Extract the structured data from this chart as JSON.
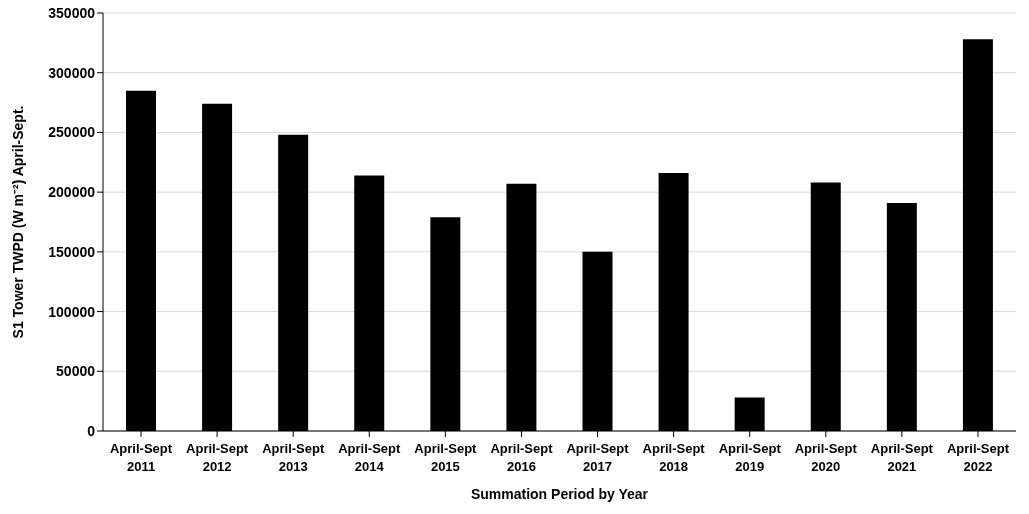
{
  "chart_data": {
    "type": "bar",
    "xlabel": "Summation Period by Year",
    "ylabel": "S1 Tower TWPD (W m⁻²) April-Sept.",
    "categories": [
      "April-Sept\n2011",
      "April-Sept\n2012",
      "April-Sept\n2013",
      "April-Sept\n2014",
      "April-Sept\n2015",
      "April-Sept\n2016",
      "April-Sept\n2017",
      "April-Sept\n2018",
      "April-Sept\n2019",
      "April-Sept\n2020",
      "April-Sept\n2021",
      "April-Sept\n2022"
    ],
    "values": [
      285000,
      274000,
      248000,
      214000,
      179000,
      207000,
      150000,
      216000,
      28000,
      208000,
      191000,
      328000
    ],
    "color": "#000000",
    "ylim": [
      0,
      350000
    ],
    "yticks": [
      0,
      50000,
      100000,
      150000,
      200000,
      250000,
      300000,
      350000
    ],
    "grid": "y",
    "legend": false
  }
}
